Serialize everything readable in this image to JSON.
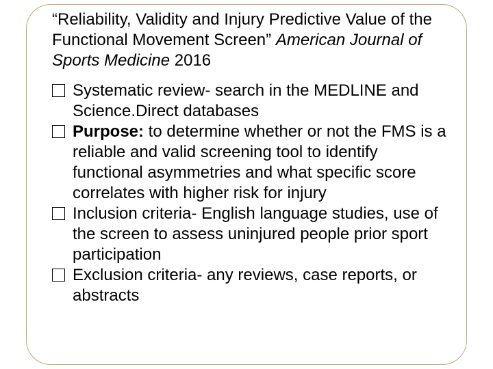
{
  "title": {
    "part1": "“Reliability, Validity and Injury Predictive Value of the Functional Movement Screen” ",
    "journal": "American Journal of Sports Medicine",
    "year": " 2016"
  },
  "bullets": [
    {
      "prefix": "",
      "bold": "",
      "text": "Systematic review- search in the MEDLINE and Science.Direct databases"
    },
    {
      "prefix": "",
      "bold": "Purpose:",
      "text": " to determine whether or not the FMS is a reliable and valid screening tool to identify functional asymmetries and what specific score correlates with higher risk for injury"
    },
    {
      "prefix": "",
      "bold": "",
      "text": "Inclusion criteria- English language studies, use of the screen to assess uninjured people prior sport participation"
    },
    {
      "prefix": "",
      "bold": "",
      "text": "Exclusion criteria- any reviews, case reports, or abstracts"
    }
  ],
  "colors": {
    "border": "#c0a878",
    "text": "#000000",
    "background": "#ffffff"
  }
}
